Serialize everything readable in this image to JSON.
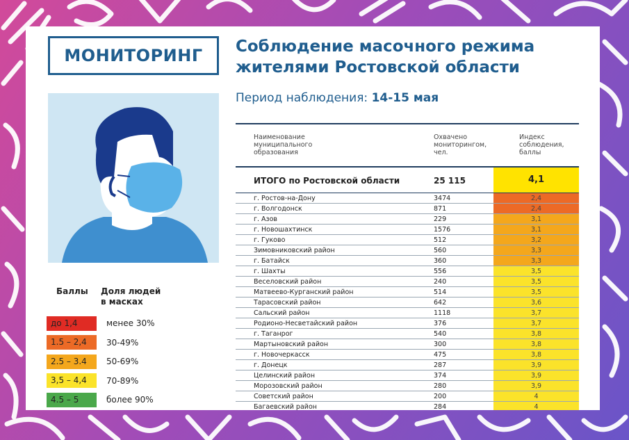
{
  "header": {
    "badge": "МОНИТОРИНГ",
    "title_line1": "Соблюдение масочного режима",
    "title_line2": "жителями Ростовской области",
    "period_label": "Период наблюдения:",
    "period_value": "14-15 мая"
  },
  "legend": {
    "col1": "Баллы",
    "col2_line1": "Доля людей",
    "col2_line2": "в масках",
    "items": [
      {
        "range": "до 1,4",
        "share": "менее 30%",
        "color": "#e02b24"
      },
      {
        "range": "1.5 – 2,4",
        "share": "30-49%",
        "color": "#ec6a26"
      },
      {
        "range": "2.5 – 3.4",
        "share": "50-69%",
        "color": "#f4a71c"
      },
      {
        "range": "3,5 – 4,4",
        "share": "70-89%",
        "color": "#fbe32a"
      },
      {
        "range": "4.5 – 5",
        "share": "более 90%",
        "color": "#4aa84a"
      }
    ]
  },
  "table": {
    "headers": {
      "c1_line1": "Наименование",
      "c1_line2": "муниципального",
      "c1_line3": "образования",
      "c2_line1": "Охвачено",
      "c2_line2": "мониторингом,",
      "c2_line3": "чел.",
      "c3_line1": "Индекс",
      "c3_line2": "соблюдения,",
      "c3_line3": "баллы"
    },
    "total": {
      "name": "ИТОГО по Ростовской области",
      "count": "25 115",
      "index": "4,1",
      "color": "#ffe300"
    },
    "rows": [
      {
        "name": "г. Ростов-на-Дону",
        "count": "3474",
        "index": "2,4",
        "color": "#ec6a26"
      },
      {
        "name": "г. Волгодонск",
        "count": "871",
        "index": "2,4",
        "color": "#ec6a26"
      },
      {
        "name": "г. Азов",
        "count": "229",
        "index": "3,1",
        "color": "#f4a71c"
      },
      {
        "name": "г. Новошахтинск",
        "count": "1576",
        "index": "3,1",
        "color": "#f4a71c"
      },
      {
        "name": "г. Гуково",
        "count": "512",
        "index": "3,2",
        "color": "#f4a71c"
      },
      {
        "name": "Зимовниковский район",
        "count": "560",
        "index": "3,3",
        "color": "#f4a71c"
      },
      {
        "name": "г. Батайск",
        "count": "360",
        "index": "3,3",
        "color": "#f4a71c"
      },
      {
        "name": "г. Шахты",
        "count": "556",
        "index": "3,5",
        "color": "#fbe32a"
      },
      {
        "name": "Веселовский район",
        "count": "240",
        "index": "3,5",
        "color": "#fbe32a"
      },
      {
        "name": "Матвеево-Курганский район",
        "count": "514",
        "index": "3,5",
        "color": "#fbe32a"
      },
      {
        "name": "Тарасовский район",
        "count": "642",
        "index": "3,6",
        "color": "#fbe32a"
      },
      {
        "name": "Сальский район",
        "count": "1118",
        "index": "3,7",
        "color": "#fbe32a"
      },
      {
        "name": "Родионо-Несветайский район",
        "count": "376",
        "index": "3,7",
        "color": "#fbe32a"
      },
      {
        "name": "г. Таганрог",
        "count": "540",
        "index": "3,8",
        "color": "#fbe32a"
      },
      {
        "name": "Мартыновский район",
        "count": "300",
        "index": "3,8",
        "color": "#fbe32a"
      },
      {
        "name": "г. Новочеркасск",
        "count": "475",
        "index": "3,8",
        "color": "#fbe32a"
      },
      {
        "name": "г. Донецк",
        "count": "287",
        "index": "3,9",
        "color": "#fbe32a"
      },
      {
        "name": "Целинский район",
        "count": "374",
        "index": "3,9",
        "color": "#fbe32a"
      },
      {
        "name": "Морозовский район",
        "count": "280",
        "index": "3,9",
        "color": "#fbe32a"
      },
      {
        "name": "Советский район",
        "count": "200",
        "index": "4",
        "color": "#fbe32a"
      },
      {
        "name": "Багаевский район",
        "count": "284",
        "index": "4",
        "color": "#fbe32a"
      }
    ]
  }
}
